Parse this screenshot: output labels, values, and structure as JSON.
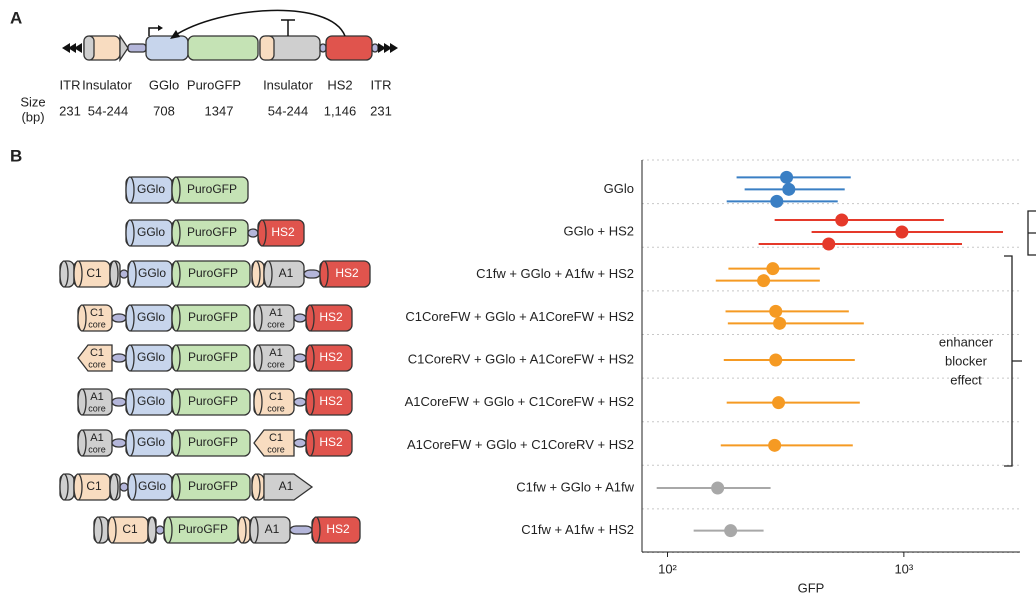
{
  "panel_a": {
    "label": "A",
    "elements": [
      "ITR",
      "Insulator",
      "GGlo",
      "PuroGFP",
      "Insulator",
      "HS2",
      "ITR"
    ],
    "size_label": [
      "Size",
      "(bp)"
    ],
    "sizes": [
      "231",
      "54-244",
      "708",
      "1347",
      "54-244",
      "1,146",
      "231"
    ]
  },
  "panel_b": {
    "label": "B",
    "constructs": [
      [
        "GGlo",
        "PuroGFP"
      ],
      [
        "GGlo",
        "PuroGFP",
        "HS2"
      ],
      [
        "C1",
        "GGlo",
        "PuroGFP",
        "A1",
        "HS2"
      ],
      [
        {
          "label": "C1",
          "sub": "core"
        },
        "GGlo",
        "PuroGFP",
        {
          "label": "A1",
          "sub": "core"
        },
        "HS2"
      ],
      [
        {
          "label": "C1",
          "sub": "core"
        },
        "GGlo",
        "PuroGFP",
        {
          "label": "A1",
          "sub": "core"
        },
        "HS2"
      ],
      [
        {
          "label": "A1",
          "sub": "core"
        },
        "GGlo",
        "PuroGFP",
        {
          "label": "C1",
          "sub": "core"
        },
        "HS2"
      ],
      [
        {
          "label": "A1",
          "sub": "core"
        },
        "GGlo",
        "PuroGFP",
        {
          "label": "C1",
          "sub": "core"
        },
        "HS2"
      ],
      [
        "C1",
        "GGlo",
        "PuroGFP",
        "A1"
      ],
      [
        "C1",
        "PuroGFP",
        "A1",
        "HS2"
      ]
    ]
  },
  "chart_data": {
    "type": "dot-range",
    "categories": [
      "GGlo",
      "GGlo + HS2",
      "C1fw + GGlo + A1fw + HS2",
      "C1CoreFW + GGlo + A1CoreFW + HS2",
      "C1CoreRV + GGlo + A1CoreFW + HS2",
      "A1CoreFW + GGlo + C1CoreFW + HS2",
      "A1CoreFW + GGlo + C1CoreRV + HS2",
      "C1fw + GGlo + A1fw",
      "C1fw + A1fw + HS2"
    ],
    "groups": [
      {
        "color": "#3a7fc4",
        "values": [
          319,
          326,
          290
        ],
        "lower": [
          196,
          212,
          178
        ],
        "upper": [
          596,
          562,
          525
        ]
      },
      {
        "color": "#e5392a",
        "values": [
          546,
          981,
          481
        ],
        "lower": [
          284,
          407,
          243
        ],
        "upper": [
          1477,
          2627,
          1762
        ]
      },
      {
        "color": "#f59a23",
        "values": [
          279,
          255
        ],
        "lower": [
          181,
          160
        ],
        "upper": [
          441,
          441
        ]
      },
      {
        "color": "#f59a23",
        "values": [
          287,
          298
        ],
        "lower": [
          176,
          180
        ],
        "upper": [
          585,
          677
        ]
      },
      {
        "color": "#f59a23",
        "values": [
          287
        ],
        "lower": [
          173
        ],
        "upper": [
          620
        ]
      },
      {
        "color": "#f59a23",
        "values": [
          295
        ],
        "lower": [
          178
        ],
        "upper": [
          651
        ]
      },
      {
        "color": "#f59a23",
        "values": [
          284
        ],
        "lower": [
          168
        ],
        "upper": [
          608
        ]
      },
      {
        "color": "#a8a8a8",
        "values": [
          163
        ],
        "lower": [
          90
        ],
        "upper": [
          273
        ]
      },
      {
        "color": "#a8a8a8",
        "values": [
          185
        ],
        "lower": [
          129
        ],
        "upper": [
          255
        ]
      }
    ],
    "xlabel": "GFP",
    "xscale": "log",
    "xlim": [
      78,
      3100
    ],
    "xticks": [
      {
        "value": 100,
        "label": "10²"
      },
      {
        "value": 1000,
        "label": "10³"
      }
    ],
    "grid": true,
    "annotation": [
      "enhancer",
      "blocker",
      "effect"
    ]
  }
}
